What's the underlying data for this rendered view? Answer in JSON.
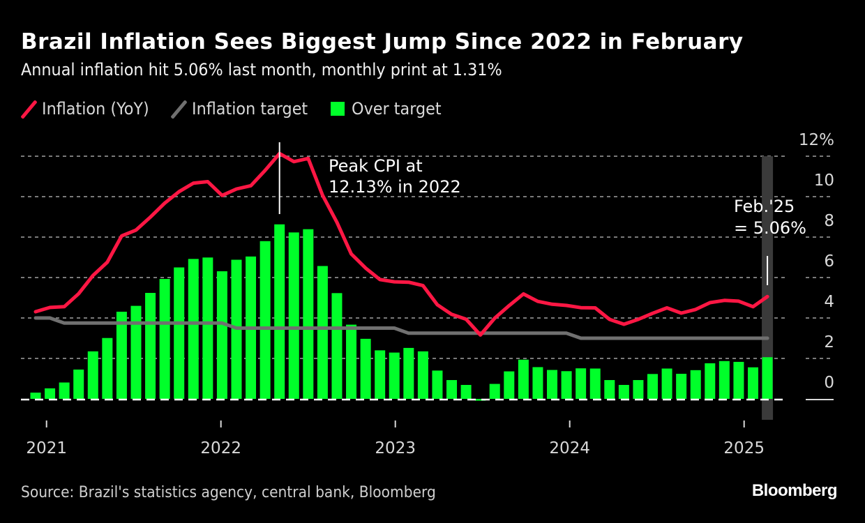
{
  "header": {
    "title": "Brazil Inflation Sees Biggest Jump Since 2022 in February",
    "subtitle": "Annual inflation hit 5.06% last month, monthly print at 1.31%"
  },
  "legend": [
    {
      "label": "Inflation (YoY)",
      "kind": "line",
      "color": "#ff1744"
    },
    {
      "label": "Inflation target",
      "kind": "line",
      "color": "#707070"
    },
    {
      "label": "Over target",
      "kind": "box",
      "color": "#00ff2a"
    }
  ],
  "footer": {
    "source": "Source: Brazil's statistics agency, central bank, Bloomberg",
    "brand": "Bloomberg"
  },
  "chart_data": {
    "type": "bar",
    "title": "Brazil Inflation Sees Biggest Jump Since 2022 in February",
    "xlabel": "",
    "ylabel": "",
    "ylim": [
      0,
      12
    ],
    "y_ticks": [
      "12%",
      "10",
      "8",
      "6",
      "4",
      "2",
      "0"
    ],
    "y_tick_values": [
      12,
      10,
      8,
      6,
      4,
      2,
      0
    ],
    "x_ticks": [
      "2021",
      "2022",
      "2023",
      "2024",
      "2025"
    ],
    "grid": true,
    "legend_position": "top-left",
    "y_axis_position": "right",
    "categories": [
      "Nov 2020",
      "Dec 2020",
      "Jan 2021",
      "Feb 2021",
      "Mar 2021",
      "Apr 2021",
      "May 2021",
      "Jun 2021",
      "Jul 2021",
      "Aug 2021",
      "Sep 2021",
      "Oct 2021",
      "Nov 2021",
      "Dec 2021",
      "Jan 2022",
      "Feb 2022",
      "Mar 2022",
      "Apr 2022",
      "May 2022",
      "Jun 2022",
      "Jul 2022",
      "Aug 2022",
      "Sep 2022",
      "Oct 2022",
      "Nov 2022",
      "Dec 2022",
      "Jan 2023",
      "Feb 2023",
      "Mar 2023",
      "Apr 2023",
      "May 2023",
      "Jun 2023",
      "Jul 2023",
      "Aug 2023",
      "Sep 2023",
      "Oct 2023",
      "Nov 2023",
      "Dec 2023",
      "Jan 2024",
      "Feb 2024",
      "Mar 2024",
      "Apr 2024",
      "May 2024",
      "Jun 2024",
      "Jul 2024",
      "Aug 2024",
      "Sep 2024",
      "Oct 2024",
      "Nov 2024",
      "Dec 2024",
      "Jan 2025",
      "Feb 2025"
    ],
    "series": [
      {
        "name": "Inflation (YoY)",
        "type": "line",
        "color": "#ff1744",
        "values": [
          4.31,
          4.52,
          4.56,
          5.2,
          6.1,
          6.76,
          8.06,
          8.35,
          8.99,
          9.68,
          10.25,
          10.67,
          10.74,
          10.06,
          10.38,
          10.54,
          11.3,
          12.13,
          11.73,
          11.89,
          10.07,
          8.73,
          7.17,
          6.47,
          5.9,
          5.79,
          5.77,
          5.6,
          4.65,
          4.18,
          3.94,
          3.16,
          3.99,
          4.61,
          5.19,
          4.82,
          4.68,
          4.62,
          4.51,
          4.5,
          3.93,
          3.69,
          3.93,
          4.23,
          4.5,
          4.24,
          4.42,
          4.76,
          4.87,
          4.83,
          4.56,
          5.06
        ]
      },
      {
        "name": "Inflation target",
        "type": "line",
        "color": "#707070",
        "values": [
          4.0,
          4.0,
          3.75,
          3.75,
          3.75,
          3.75,
          3.75,
          3.75,
          3.75,
          3.75,
          3.75,
          3.75,
          3.75,
          3.75,
          3.5,
          3.5,
          3.5,
          3.5,
          3.5,
          3.5,
          3.5,
          3.5,
          3.5,
          3.5,
          3.5,
          3.5,
          3.25,
          3.25,
          3.25,
          3.25,
          3.25,
          3.25,
          3.25,
          3.25,
          3.25,
          3.25,
          3.25,
          3.25,
          3.0,
          3.0,
          3.0,
          3.0,
          3.0,
          3.0,
          3.0,
          3.0,
          3.0,
          3.0,
          3.0,
          3.0,
          3.0,
          3.0
        ]
      },
      {
        "name": "Over target",
        "type": "bar",
        "color": "#00ff2a",
        "values": [
          0.31,
          0.52,
          0.81,
          1.45,
          2.35,
          3.01,
          4.31,
          4.6,
          5.24,
          5.93,
          6.5,
          6.92,
          6.99,
          6.31,
          6.88,
          7.04,
          7.8,
          8.63,
          8.23,
          8.39,
          6.57,
          5.23,
          3.67,
          2.97,
          2.4,
          2.29,
          2.52,
          2.35,
          1.4,
          0.93,
          0.69,
          -0.09,
          0.74,
          1.36,
          1.94,
          1.57,
          1.43,
          1.37,
          1.51,
          1.5,
          0.93,
          0.69,
          0.93,
          1.23,
          1.5,
          1.24,
          1.42,
          1.76,
          1.87,
          1.83,
          1.56,
          2.06
        ]
      }
    ],
    "annotations": [
      {
        "text_lines": [
          "Peak CPI at",
          "12.13% in 2022"
        ],
        "target": "Apr 2022",
        "value": 12.13
      },
      {
        "text_lines": [
          "Feb.'25",
          "= 5.06%"
        ],
        "target": "Feb 2025",
        "value": 5.06,
        "highlight": true
      }
    ]
  }
}
